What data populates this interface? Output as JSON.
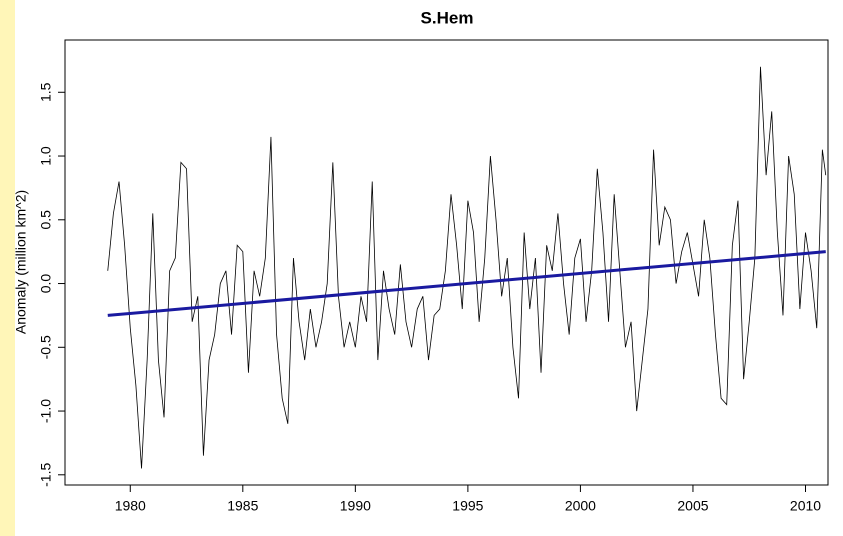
{
  "chart_data": {
    "type": "line",
    "title": "S.Hem",
    "y_label": "Anomaly (million km^2)",
    "xlim": [
      1977.1,
      2011.0
    ],
    "xticks": [
      1980,
      1985,
      1990,
      1995,
      2000,
      2005,
      2010
    ],
    "ylim": [
      -1.58,
      1.91
    ],
    "yticks": [
      -1.5,
      {
        "value": -1,
        "label": "-1.0"
      },
      -0.5,
      {
        "value": 0,
        "label": "0.0"
      },
      0.5,
      {
        "value": 1,
        "label": "1.0"
      },
      1.5
    ],
    "series": [
      {
        "color": "#000000",
        "x": [
          1979.0,
          1979.25,
          1979.5,
          1979.75,
          1980.0,
          1980.25,
          1980.5,
          1980.75,
          1981.0,
          1981.25,
          1981.5,
          1981.75,
          1982.0,
          1982.25,
          1982.5,
          1982.75,
          1983.0,
          1983.25,
          1983.5,
          1983.75,
          1984.0,
          1984.25,
          1984.5,
          1984.75,
          1985.0,
          1985.25,
          1985.5,
          1985.75,
          1986.0,
          1986.25,
          1986.5,
          1986.75,
          1987.0,
          1987.25,
          1987.5,
          1987.75,
          1988.0,
          1988.25,
          1988.5,
          1988.75,
          1989.0,
          1989.25,
          1989.5,
          1989.75,
          1990.0,
          1990.25,
          1990.5,
          1990.75,
          1991.0,
          1991.25,
          1991.5,
          1991.75,
          1992.0,
          1992.25,
          1992.5,
          1992.75,
          1993.0,
          1993.25,
          1993.5,
          1993.75,
          1994.0,
          1994.25,
          1994.5,
          1994.75,
          1995.0,
          1995.25,
          1995.5,
          1995.75,
          1996.0,
          1996.25,
          1996.5,
          1996.75,
          1997.0,
          1997.25,
          1997.5,
          1997.75,
          1998.0,
          1998.25,
          1998.5,
          1998.75,
          1999.0,
          1999.25,
          1999.5,
          1999.75,
          2000.0,
          2000.25,
          2000.5,
          2000.75,
          2001.0,
          2001.25,
          2001.5,
          2001.75,
          2002.0,
          2002.25,
          2002.5,
          2002.75,
          2003.0,
          2003.25,
          2003.5,
          2003.75,
          2004.0,
          2004.25,
          2004.5,
          2004.75,
          2005.0,
          2005.25,
          2005.5,
          2005.75,
          2006.0,
          2006.25,
          2006.5,
          2006.75,
          2007.0,
          2007.25,
          2007.5,
          2007.75,
          2008.0,
          2008.25,
          2008.5,
          2008.75,
          2009.0,
          2009.25,
          2009.5,
          2009.75,
          2010.0,
          2010.25,
          2010.5,
          2010.75,
          2010.9
        ],
        "values": [
          0.1,
          0.55,
          0.8,
          0.3,
          -0.35,
          -0.8,
          -1.45,
          -0.6,
          0.55,
          -0.6,
          -1.05,
          0.1,
          0.2,
          0.95,
          0.9,
          -0.3,
          -0.1,
          -1.35,
          -0.6,
          -0.4,
          0.0,
          0.1,
          -0.4,
          0.3,
          0.25,
          -0.7,
          0.1,
          -0.1,
          0.2,
          1.15,
          -0.4,
          -0.9,
          -1.1,
          0.2,
          -0.3,
          -0.6,
          -0.2,
          -0.5,
          -0.3,
          0.0,
          0.95,
          -0.1,
          -0.5,
          -0.3,
          -0.5,
          -0.1,
          -0.3,
          0.8,
          -0.6,
          0.1,
          -0.2,
          -0.4,
          0.15,
          -0.3,
          -0.5,
          -0.2,
          -0.1,
          -0.6,
          -0.25,
          -0.2,
          0.1,
          0.7,
          0.3,
          -0.2,
          0.65,
          0.4,
          -0.3,
          0.2,
          1.0,
          0.5,
          -0.1,
          0.2,
          -0.5,
          -0.9,
          0.4,
          -0.2,
          0.2,
          -0.7,
          0.3,
          0.1,
          0.55,
          0.0,
          -0.4,
          0.2,
          0.35,
          -0.3,
          0.1,
          0.9,
          0.4,
          -0.3,
          0.7,
          0.1,
          -0.5,
          -0.3,
          -1.0,
          -0.6,
          -0.2,
          1.05,
          0.3,
          0.6,
          0.5,
          0.0,
          0.25,
          0.4,
          0.15,
          -0.1,
          0.5,
          0.2,
          -0.4,
          -0.9,
          -0.95,
          0.3,
          0.65,
          -0.75,
          -0.3,
          0.2,
          1.7,
          0.85,
          1.35,
          0.4,
          -0.25,
          1.0,
          0.7,
          -0.2,
          0.4,
          0.1,
          -0.35,
          1.05,
          0.85
        ]
      },
      {
        "color": "#1a1aa0",
        "x": [
          1979.0,
          2010.9
        ],
        "values": [
          -0.25,
          0.25
        ]
      }
    ]
  }
}
